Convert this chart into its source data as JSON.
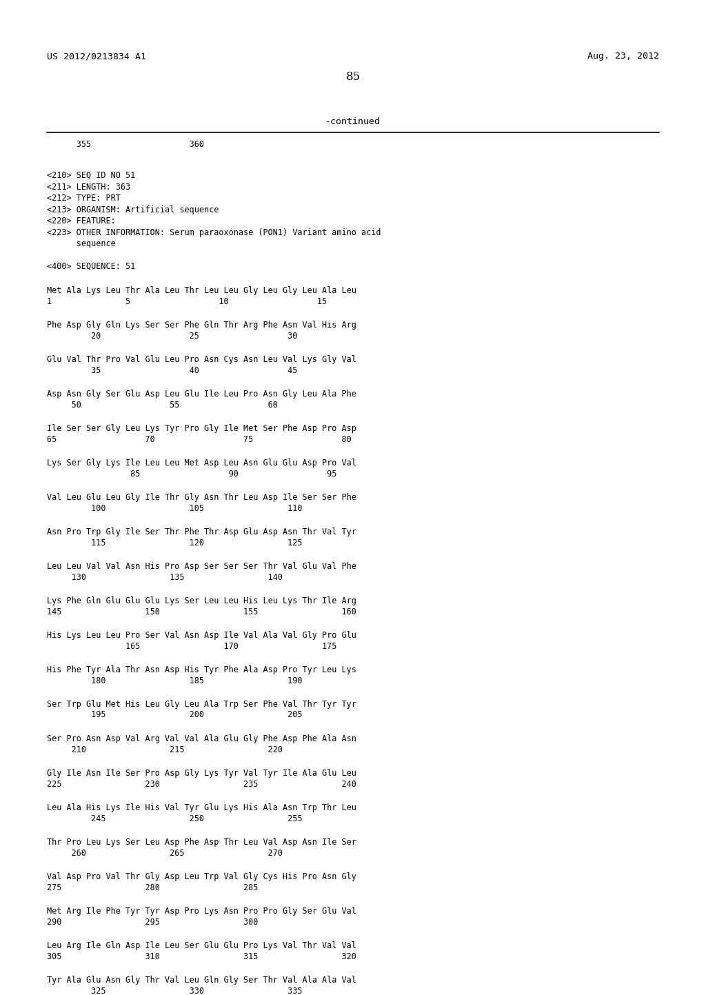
{
  "header_left": "US 2012/0213834 A1",
  "header_right": "Aug. 23, 2012",
  "page_number": "85",
  "continued_label": "-continued",
  "ruler_numbers": "      355                    360",
  "metadata": [
    "<210> SEQ ID NO 51",
    "<211> LENGTH: 363",
    "<212> TYPE: PRT",
    "<213> ORGANISM: Artificial sequence",
    "<220> FEATURE:",
    "<223> OTHER INFORMATION: Serum paraoxonase (PON1) Variant amino acid",
    "      sequence",
    "",
    "<400> SEQUENCE: 51"
  ],
  "sequence_blocks": [
    {
      "aa": "Met Ala Lys Leu Thr Ala Leu Thr Leu Leu Gly Leu Gly Leu Ala Leu",
      "num": "1               5                  10                  15"
    },
    {
      "aa": "Phe Asp Gly Gln Lys Ser Ser Phe Gln Thr Arg Phe Asn Val His Arg",
      "num": "         20                  25                  30"
    },
    {
      "aa": "Glu Val Thr Pro Val Glu Leu Pro Asn Cys Asn Leu Val Lys Gly Val",
      "num": "         35                  40                  45"
    },
    {
      "aa": "Asp Asn Gly Ser Glu Asp Leu Glu Ile Leu Pro Asn Gly Leu Ala Phe",
      "num": "     50                  55                  60"
    },
    {
      "aa": "Ile Ser Ser Gly Leu Lys Tyr Pro Gly Ile Met Ser Phe Asp Pro Asp",
      "num": "65                  70                  75                  80"
    },
    {
      "aa": "Lys Ser Gly Lys Ile Leu Leu Met Asp Leu Asn Glu Glu Asp Pro Val",
      "num": "                 85                  90                  95"
    },
    {
      "aa": "Val Leu Glu Leu Gly Ile Thr Gly Asn Thr Leu Asp Ile Ser Ser Phe",
      "num": "         100                 105                 110"
    },
    {
      "aa": "Asn Pro Trp Gly Ile Ser Thr Phe Thr Asp Glu Asp Asn Thr Val Tyr",
      "num": "         115                 120                 125"
    },
    {
      "aa": "Leu Leu Val Val Asn His Pro Asp Ser Ser Ser Thr Val Glu Val Phe",
      "num": "     130                 135                 140"
    },
    {
      "aa": "Lys Phe Gln Glu Glu Glu Lys Ser Leu Leu His Leu Lys Thr Ile Arg",
      "num": "145                 150                 155                 160"
    },
    {
      "aa": "His Lys Leu Leu Pro Ser Val Asn Asp Ile Val Ala Val Gly Pro Glu",
      "num": "                165                 170                 175"
    },
    {
      "aa": "His Phe Tyr Ala Thr Asn Asp His Tyr Phe Ala Asp Pro Tyr Leu Lys",
      "num": "         180                 185                 190"
    },
    {
      "aa": "Ser Trp Glu Met His Leu Gly Leu Ala Trp Ser Phe Val Thr Tyr Tyr",
      "num": "         195                 200                 205"
    },
    {
      "aa": "Ser Pro Asn Asp Val Arg Val Val Ala Glu Gly Phe Asp Phe Ala Asn",
      "num": "     210                 215                 220"
    },
    {
      "aa": "Gly Ile Asn Ile Ser Pro Asp Gly Lys Tyr Val Tyr Ile Ala Glu Leu",
      "num": "225                 230                 235                 240"
    },
    {
      "aa": "Leu Ala His Lys Ile His Val Tyr Glu Lys His Ala Asn Trp Thr Leu",
      "num": "         245                 250                 255"
    },
    {
      "aa": "Thr Pro Leu Lys Ser Leu Asp Phe Asp Thr Leu Val Asp Asn Ile Ser",
      "num": "     260                 265                 270"
    },
    {
      "aa": "Val Asp Pro Val Thr Gly Asp Leu Trp Val Gly Cys His Pro Asn Gly",
      "num": "275                 280                 285"
    },
    {
      "aa": "Met Arg Ile Phe Tyr Tyr Asp Pro Lys Asn Pro Pro Gly Ser Glu Val",
      "num": "290                 295                 300"
    },
    {
      "aa": "Leu Arg Ile Gln Asp Ile Leu Ser Glu Glu Pro Lys Val Thr Val Val",
      "num": "305                 310                 315                 320"
    },
    {
      "aa": "Tyr Ala Glu Asn Gly Thr Val Leu Gln Gly Ser Thr Val Ala Ala Val",
      "num": "         325                 330                 335"
    }
  ],
  "background_color": "#ffffff",
  "text_color": "#000000",
  "font_size_header": 9.5,
  "font_size_body": 8.5,
  "font_size_page": 12,
  "font_size_continued": 9.5
}
